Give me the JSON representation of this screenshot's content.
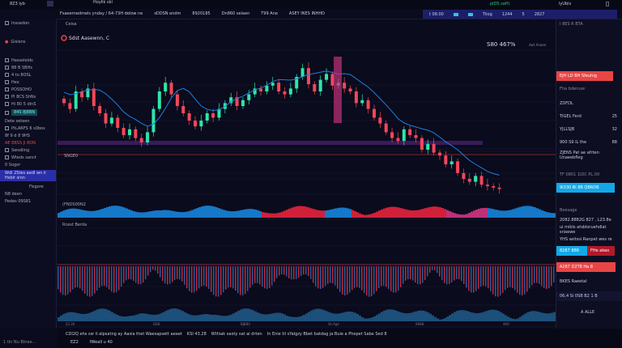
{
  "topbar": {
    "workspace": "8Z3 lyb",
    "tab": "Hoylik skl",
    "account": "plDS saHi",
    "user": "lyUbls"
  },
  "toolbar": {
    "items": [
      "Fsaeernedmels ynday / 64-73H delow ne",
      "sDDSN endm",
      "8920185",
      "Dn860 selaen",
      "T99 Ane",
      "ASEY INES INHHD"
    ],
    "right_items": [
      "t 08.00",
      "Tiiog",
      "1244",
      "5",
      "2827"
    ]
  },
  "sidebar": {
    "header": "Inssedon",
    "items": [
      "Gislens",
      "Hasselelds",
      "88 B SBHs",
      "4 to 8OSL",
      "Hex",
      "POSSOHO",
      "PI 8CS ShNs",
      "Hi 80 5 dlnS",
      "Dete seteen",
      "PtLARFS 6 s0bos",
      "8f 9 d 8 9HS",
      "AE 8BSS Ji 8DN",
      "Swsdiing",
      "Wteds sanct"
    ],
    "badge": "84S 8J8BN",
    "promo": "Wdi 2Stes aedl wn ii Hsblr sinn",
    "footer_items": [
      "0 Sogor",
      "Fisgore",
      "N8 deen",
      "Pedes 09S81"
    ]
  },
  "main": {
    "pair": "Sdst Aasewnn, C",
    "symbol_tag": "Ceisa",
    "price": "S80  467%",
    "price_note": "dwt Anaee",
    "pane2_label": "SNGE0",
    "pane3_label": "(FNDS00N2",
    "pane4_label": "Rcest Berda",
    "x_ticks": [
      "22.20",
      "6D8",
      "BJ8B0",
      "Sk.Age",
      "9688",
      "460"
    ]
  },
  "chart_data": {
    "type": "candlestick",
    "closes": [
      62,
      58,
      70,
      66,
      72,
      60,
      55,
      48,
      52,
      45,
      40,
      44,
      38,
      35,
      42,
      58,
      70,
      76,
      68,
      60,
      55,
      50,
      46,
      50,
      55,
      52,
      58,
      62,
      66,
      60,
      64,
      68,
      72,
      70,
      74,
      76,
      70,
      68,
      72,
      80,
      86,
      75,
      70,
      78,
      82,
      74,
      76,
      72,
      70,
      62,
      64,
      58,
      52,
      48,
      42,
      38,
      36,
      44,
      40,
      38,
      30,
      34,
      28,
      26,
      20,
      22,
      14,
      10,
      8,
      12,
      6,
      5,
      4,
      3
    ],
    "up_color": "#2ee6a8",
    "down_color": "#f0485a"
  },
  "right": {
    "head": "I 8ES  R  BTA",
    "sell_btn": "EJH  LD  BH  Sfeuhig",
    "sub": "Fha bderuse",
    "rows": [
      {
        "label": "ZDFDL",
        "val": ""
      },
      {
        "label": "TIGEL Ferd",
        "val": "25"
      },
      {
        "label": "YJLLSJB",
        "val": "32"
      },
      {
        "label": "900 S9 IL the",
        "val": "88"
      }
    ],
    "note": "ZJENS Pat ae afrten Unaeebfleg",
    "stat": "TF 0801  1IDC PL.00",
    "buy_btn": "9I330  Bi 8B  QBRDB",
    "section": "Beesage",
    "quote": "2082.8882G 827 , L23.8e",
    "line1": "ui mibls atsbloruehdlat sriaewe",
    "line2": "YHS seitssi Ranpet wes re",
    "pair_buy": "8287 888",
    "pair_sell": "FHe akeo",
    "sell2": "A287 D2T8 Ha 8",
    "pos1": "BKES Raeetal",
    "pos2": "06,4 Si 0SB  B2 1 B",
    "bottom": "A ALLE"
  },
  "status": {
    "left": "CDI2Q ehs ssr il alpsatng ay Aasia thet Waesapsett aeaet",
    "time": "KSI 43.28",
    "mid": "Wthiak saoty sat ai drten",
    "right": "In Enie til sYalgzy Bbet batdag ja Buie a Phepet Sabe Sed 8",
    "bottom_left": "EZ2",
    "bottom_mid": "fWeall u 40",
    "bottom_corner": "1 tln Nu Blnee..."
  },
  "colors": {
    "bg": "#0a0b1c",
    "accent_red": "#e84545",
    "accent_blue": "#12a8e8",
    "line": "#1e7de0",
    "purple": "#c0307a"
  }
}
